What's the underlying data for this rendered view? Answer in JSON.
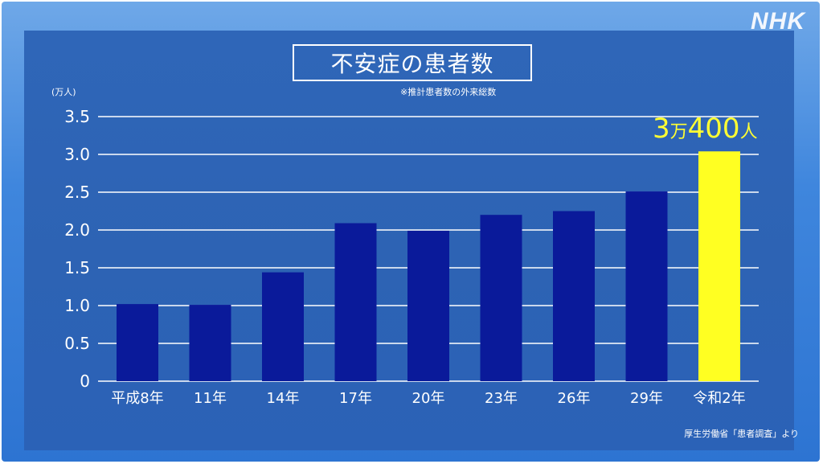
{
  "logo": "NHK",
  "title": "不安症の患者数",
  "note": "※推計患者数の外来総数",
  "y_unit": "(万人)",
  "source": "厚生労働省「患者調査」より",
  "callout": {
    "num": "3",
    "unit1": "万",
    "num2": "400",
    "unit2": "人"
  },
  "colors": {
    "bar": "#0a1a9a",
    "highlight": "#ffff22",
    "grid": "#ffffff"
  },
  "chart_data": {
    "type": "bar",
    "title": "不安症の患者数",
    "ylabel": "(万人)",
    "categories": [
      "平成8年",
      "11年",
      "14年",
      "17年",
      "20年",
      "23年",
      "26年",
      "29年",
      "令和2年"
    ],
    "values": [
      1.02,
      1.01,
      1.44,
      2.09,
      1.99,
      2.2,
      2.25,
      2.51,
      3.04
    ],
    "highlight_index": 8,
    "ylim": [
      0,
      3.5
    ],
    "yticks": [
      "0",
      "0.5",
      "1.0",
      "1.5",
      "2.0",
      "2.5",
      "3.0",
      "3.5"
    ],
    "grid": true
  }
}
